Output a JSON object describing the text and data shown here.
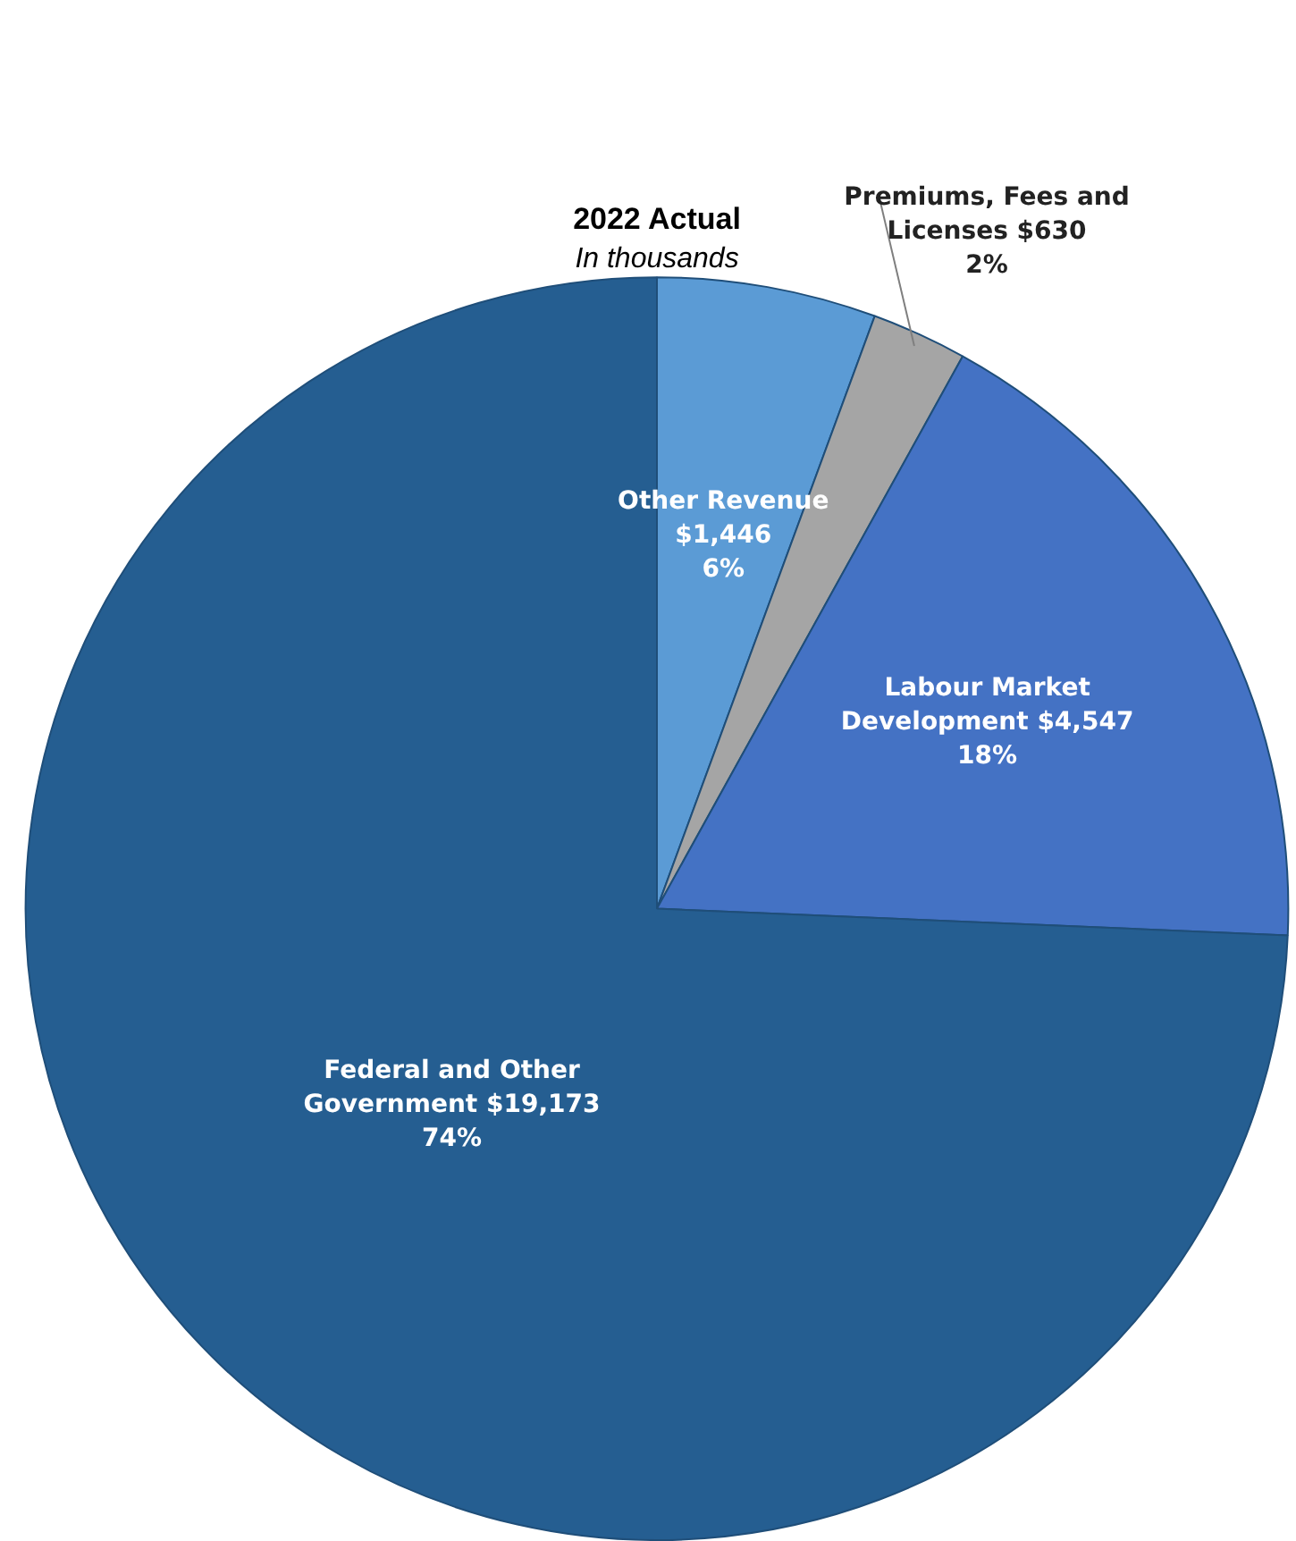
{
  "chart_data": {
    "type": "pie",
    "title": "2022 Actual",
    "subtitle": "In thousands",
    "categories": [
      "Other Revenue",
      "Premiums, Fees and Licenses",
      "Labour Market Development",
      "Federal and Other Government"
    ],
    "values": [
      1446,
      630,
      4547,
      19173
    ],
    "colors": [
      "#5b9bd5",
      "#a5a5a5",
      "#4472c4",
      "#255e91"
    ],
    "value_labels": [
      "$1,446\n6%",
      "$630\n2%",
      "$4,547\n18%",
      "$19,173\n74%"
    ],
    "legend": false
  }
}
